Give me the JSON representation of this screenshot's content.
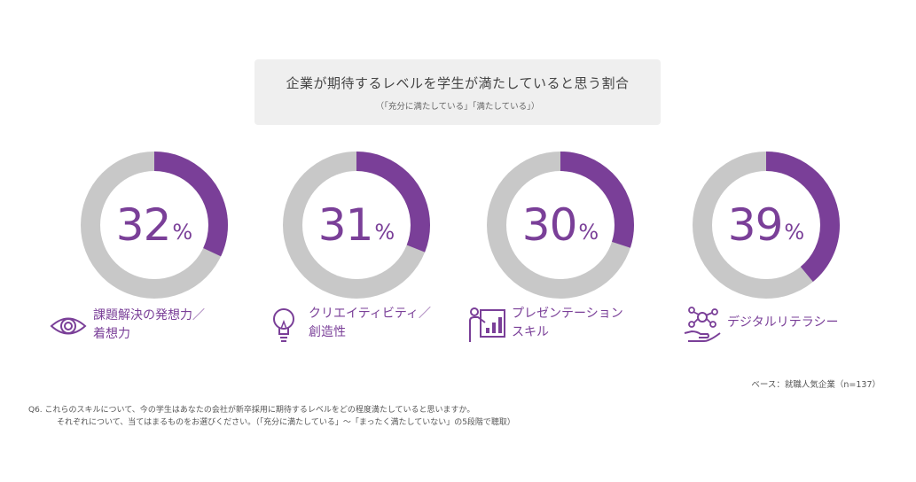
{
  "header": {
    "title": "企業が期待するレベルを学生が満たしていると思う割合",
    "subtitle": "（「充分に満たしている」「満たしている」）"
  },
  "colors": {
    "accent": "#7a3f98",
    "track": "#c8c8c8"
  },
  "chart_data": {
    "type": "pie",
    "title": "企業が期待するレベルを学生が満たしていると思う割合",
    "subtitle": "（「充分に満たしている」「満たしている」）",
    "unit": "%",
    "items": [
      {
        "label_line1": "課題解決の発想力／",
        "label_line2": "着想力",
        "value": 32,
        "value_text": "32",
        "icon": "eye-icon"
      },
      {
        "label_line1": "クリエイティビティ／",
        "label_line2": "創造性",
        "value": 31,
        "value_text": "31",
        "icon": "lightbulb-icon"
      },
      {
        "label_line1": "プレゼンテーション",
        "label_line2": "スキル",
        "value": 30,
        "value_text": "30",
        "icon": "presentation-icon"
      },
      {
        "label_line1": "デジタルリテラシー",
        "label_line2": "",
        "value": 39,
        "value_text": "39",
        "icon": "network-hand-icon"
      }
    ],
    "percent_sign": "%"
  },
  "footer": {
    "base": "ベース：就職人気企業（n=137）",
    "note_line1": "Q6. これらのスキルについて、今の学生はあなたの会社が新卒採用に期待するレベルをどの程度満たしていると思いますか。",
    "note_line2": "それぞれについて、当てはまるものをお選びください。（「充分に満たしている」〜「まったく満たしていない」の5段階で聴取）"
  }
}
